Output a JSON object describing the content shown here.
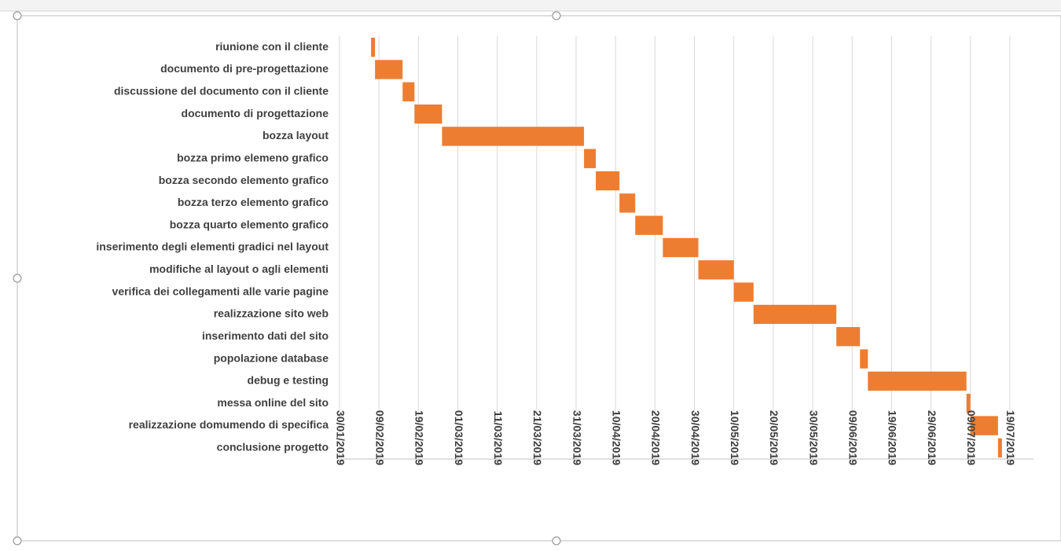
{
  "chart_data": {
    "type": "gantt",
    "color": "#ed7d31",
    "categories": [
      "riunione con il cliente",
      "documento di pre-progettazione",
      "discussione del documento con il cliente",
      "documento di progettazione",
      "bozza layout",
      "bozza primo elemeno grafico",
      "bozza secondo elemento grafico",
      "bozza terzo elemento grafico",
      "bozza quarto elemento grafico",
      "inserimento degli elementi gradici nel layout",
      "modifiche al layout o agli elementi",
      "verifica dei collegamenti alle varie pagine",
      "realizzazione sito web",
      "inserimento dati del sito",
      "popolazione database",
      "debug e testing",
      "messa online del sito",
      "realizzazione domumendo di specifica",
      "conclusione progetto"
    ],
    "starts": [
      "2019-02-07",
      "2019-02-08",
      "2019-02-15",
      "2019-02-18",
      "2019-02-25",
      "2019-04-02",
      "2019-04-05",
      "2019-04-11",
      "2019-04-15",
      "2019-04-22",
      "2019-05-01",
      "2019-05-10",
      "2019-05-15",
      "2019-06-05",
      "2019-06-11",
      "2019-06-13",
      "2019-07-08",
      "2019-07-09",
      "2019-07-16"
    ],
    "ends": [
      "2019-02-08",
      "2019-02-15",
      "2019-02-18",
      "2019-02-25",
      "2019-04-02",
      "2019-04-05",
      "2019-04-11",
      "2019-04-15",
      "2019-04-22",
      "2019-05-01",
      "2019-05-10",
      "2019-05-15",
      "2019-06-05",
      "2019-06-11",
      "2019-06-13",
      "2019-07-08",
      "2019-07-09",
      "2019-07-16",
      "2019-07-17"
    ],
    "xlim": [
      "2019-01-30",
      "2019-07-25"
    ],
    "xticks": [
      {
        "value": "2019-01-30",
        "label": "30/01/2019"
      },
      {
        "value": "2019-02-09",
        "label": "09/02/2019"
      },
      {
        "value": "2019-02-19",
        "label": "19/02/2019"
      },
      {
        "value": "2019-03-01",
        "label": "01/03/2019"
      },
      {
        "value": "2019-03-11",
        "label": "11/03/2019"
      },
      {
        "value": "2019-03-21",
        "label": "21/03/2019"
      },
      {
        "value": "2019-03-31",
        "label": "31/03/2019"
      },
      {
        "value": "2019-04-10",
        "label": "10/04/2019"
      },
      {
        "value": "2019-04-20",
        "label": "20/04/2019"
      },
      {
        "value": "2019-04-30",
        "label": "30/04/2019"
      },
      {
        "value": "2019-05-10",
        "label": "10/05/2019"
      },
      {
        "value": "2019-05-20",
        "label": "20/05/2019"
      },
      {
        "value": "2019-05-30",
        "label": "30/05/2019"
      },
      {
        "value": "2019-06-09",
        "label": "09/06/2019"
      },
      {
        "value": "2019-06-19",
        "label": "19/06/2019"
      },
      {
        "value": "2019-06-29",
        "label": "29/06/2019"
      },
      {
        "value": "2019-07-09",
        "label": "09/07/2019"
      },
      {
        "value": "2019-07-19",
        "label": "19/07/2019"
      }
    ],
    "grid": true
  }
}
